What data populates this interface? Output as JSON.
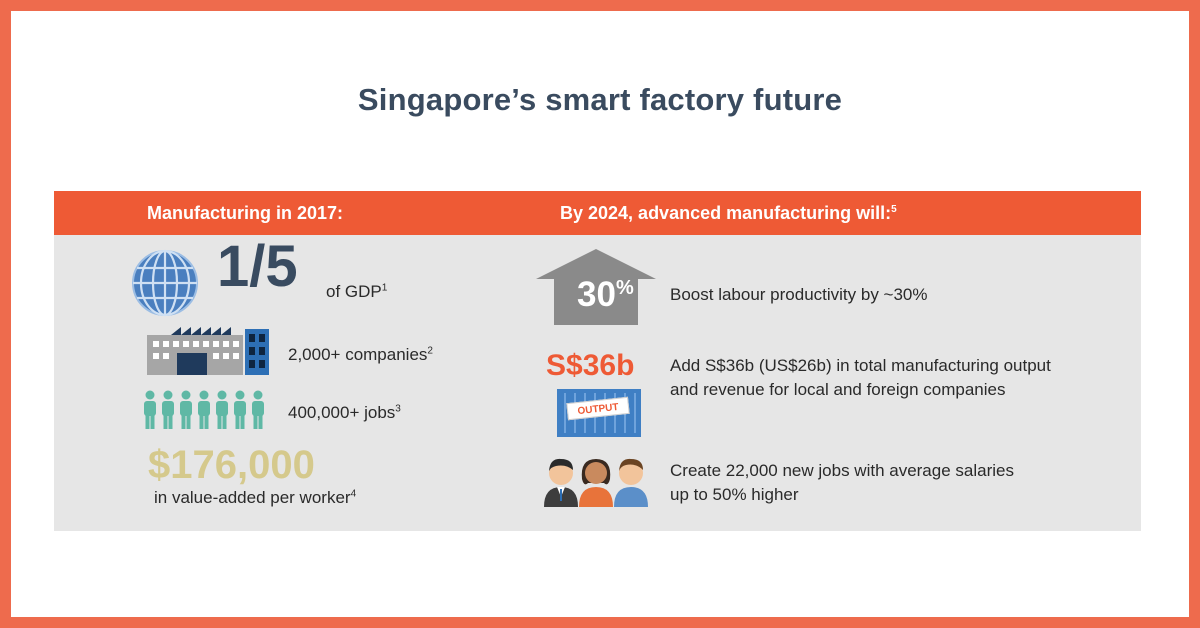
{
  "title": "Singapore’s smart factory future",
  "banner": {
    "left_heading": "Manufacturing in 2017:",
    "right_heading": "By 2024, advanced manufacturing will:",
    "right_note": "5"
  },
  "left": {
    "gdp_fraction": "1/5",
    "gdp_label": "of GDP",
    "gdp_note": "1",
    "companies_label": "2,000+ companies",
    "companies_note": "2",
    "jobs_label": "400,000+ jobs",
    "jobs_note": "3",
    "value_amount": "$176,000",
    "value_label": "in value-added per worker",
    "value_note": "4"
  },
  "right": {
    "productivity_pct": "30",
    "productivity_sign": "%",
    "productivity_text": "Boost labour productivity by ~30%",
    "output_amount": "S$36b",
    "output_tag": "OUTPUT",
    "output_text": "Add S$36b (US$26b) in total manufacturing output and revenue for local and foreign companies",
    "jobs_text": "Create 22,000 new jobs with average salaries up to 50% higher"
  },
  "colors": {
    "frame": "#ee6b4d",
    "banner": "#ee5a35",
    "title": "#3a4b5f",
    "panel": "#e6e6e6",
    "value_gold": "#d5c98c",
    "people_teal": "#5fb8a5"
  },
  "icons": [
    "globe-icon",
    "factory-icon",
    "workers-icon",
    "up-arrow-icon",
    "container-icon",
    "people-icon"
  ]
}
